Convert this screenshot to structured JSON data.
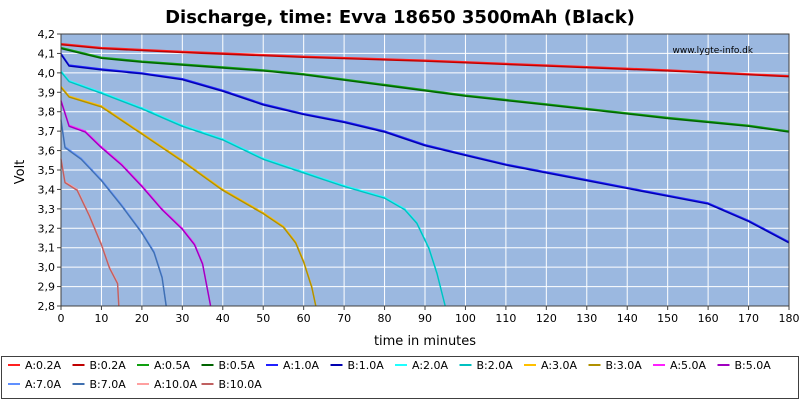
{
  "chart_data": {
    "type": "line",
    "title": "Discharge, time: Evva 18650 3500mAh (Black)",
    "xlabel": "time in minutes",
    "ylabel": "Volt",
    "xlim": [
      0,
      180
    ],
    "ylim": [
      2.8,
      4.2
    ],
    "x_ticks": [
      "0",
      "10",
      "20",
      "30",
      "40",
      "50",
      "60",
      "70",
      "80",
      "90",
      "100",
      "110",
      "120",
      "130",
      "140",
      "150",
      "160",
      "170",
      "180"
    ],
    "y_ticks": [
      "2,8",
      "2,9",
      "3,0",
      "3,1",
      "3,2",
      "3,3",
      "3,4",
      "3,5",
      "3,6",
      "3,7",
      "3,8",
      "3,9",
      "4,0",
      "4,1",
      "4,2"
    ],
    "grid": true,
    "watermark": "www.lygte-info.dk",
    "legend_position": "bottom",
    "background": "#9bb8e0",
    "series": [
      {
        "name": "A:0.2A",
        "color": "#ff2020",
        "points": [
          [
            0,
            4.15
          ],
          [
            10,
            4.13
          ],
          [
            30,
            4.11
          ],
          [
            60,
            4.085
          ],
          [
            90,
            4.065
          ],
          [
            120,
            4.04
          ],
          [
            150,
            4.015
          ],
          [
            180,
            3.985
          ]
        ]
      },
      {
        "name": "B:0.2A",
        "color": "#c00000",
        "points": [
          [
            0,
            4.145
          ],
          [
            10,
            4.125
          ],
          [
            30,
            4.105
          ],
          [
            60,
            4.08
          ],
          [
            90,
            4.06
          ],
          [
            120,
            4.035
          ],
          [
            150,
            4.01
          ],
          [
            180,
            3.98
          ]
        ]
      },
      {
        "name": "A:0.5A",
        "color": "#10a010",
        "points": [
          [
            0,
            4.13
          ],
          [
            10,
            4.08
          ],
          [
            20,
            4.06
          ],
          [
            40,
            4.03
          ],
          [
            50,
            4.015
          ],
          [
            60,
            3.995
          ],
          [
            80,
            3.94
          ],
          [
            100,
            3.885
          ],
          [
            120,
            3.84
          ],
          [
            150,
            3.77
          ],
          [
            170,
            3.73
          ],
          [
            180,
            3.7
          ]
        ]
      },
      {
        "name": "B:0.5A",
        "color": "#006400",
        "points": [
          [
            0,
            4.125
          ],
          [
            10,
            4.075
          ],
          [
            20,
            4.055
          ],
          [
            40,
            4.025
          ],
          [
            50,
            4.01
          ],
          [
            60,
            3.99
          ],
          [
            80,
            3.935
          ],
          [
            100,
            3.88
          ],
          [
            120,
            3.835
          ],
          [
            150,
            3.765
          ],
          [
            170,
            3.725
          ],
          [
            180,
            3.695
          ]
        ]
      },
      {
        "name": "A:1.0A",
        "color": "#2020ff",
        "points": [
          [
            0,
            4.1
          ],
          [
            2,
            4.04
          ],
          [
            10,
            4.02
          ],
          [
            20,
            4.0
          ],
          [
            30,
            3.97
          ],
          [
            40,
            3.91
          ],
          [
            50,
            3.84
          ],
          [
            60,
            3.79
          ],
          [
            70,
            3.75
          ],
          [
            80,
            3.7
          ],
          [
            90,
            3.63
          ],
          [
            100,
            3.58
          ],
          [
            110,
            3.53
          ],
          [
            120,
            3.49
          ],
          [
            130,
            3.45
          ],
          [
            140,
            3.41
          ],
          [
            150,
            3.37
          ],
          [
            160,
            3.33
          ],
          [
            170,
            3.24
          ],
          [
            180,
            3.13
          ]
        ]
      },
      {
        "name": "B:1.0A",
        "color": "#0000b0",
        "points": [
          [
            0,
            4.095
          ],
          [
            2,
            4.035
          ],
          [
            10,
            4.015
          ],
          [
            20,
            3.995
          ],
          [
            30,
            3.965
          ],
          [
            40,
            3.905
          ],
          [
            50,
            3.835
          ],
          [
            60,
            3.785
          ],
          [
            70,
            3.745
          ],
          [
            80,
            3.695
          ],
          [
            90,
            3.625
          ],
          [
            100,
            3.575
          ],
          [
            110,
            3.525
          ],
          [
            120,
            3.485
          ],
          [
            130,
            3.445
          ],
          [
            140,
            3.405
          ],
          [
            150,
            3.365
          ],
          [
            160,
            3.325
          ],
          [
            170,
            3.235
          ],
          [
            180,
            3.125
          ]
        ]
      },
      {
        "name": "A:2.0A",
        "color": "#20ffff",
        "points": [
          [
            0,
            4.01
          ],
          [
            2,
            3.96
          ],
          [
            10,
            3.9
          ],
          [
            20,
            3.82
          ],
          [
            30,
            3.73
          ],
          [
            40,
            3.66
          ],
          [
            50,
            3.56
          ],
          [
            60,
            3.49
          ],
          [
            70,
            3.42
          ],
          [
            80,
            3.36
          ],
          [
            85,
            3.3
          ],
          [
            88,
            3.23
          ],
          [
            91,
            3.1
          ],
          [
            93,
            2.97
          ],
          [
            95,
            2.8
          ]
        ]
      },
      {
        "name": "B:2.0A",
        "color": "#00c0c0",
        "points": [
          [
            0,
            4.005
          ],
          [
            2,
            3.955
          ],
          [
            10,
            3.895
          ],
          [
            20,
            3.815
          ],
          [
            30,
            3.725
          ],
          [
            40,
            3.655
          ],
          [
            50,
            3.555
          ],
          [
            60,
            3.485
          ],
          [
            70,
            3.415
          ],
          [
            80,
            3.355
          ],
          [
            85,
            3.295
          ],
          [
            88,
            3.225
          ],
          [
            91,
            3.095
          ],
          [
            93,
            2.965
          ],
          [
            95,
            2.8
          ]
        ]
      },
      {
        "name": "A:3.0A",
        "color": "#ffc000",
        "points": [
          [
            0,
            3.93
          ],
          [
            2,
            3.88
          ],
          [
            10,
            3.83
          ],
          [
            20,
            3.69
          ],
          [
            30,
            3.55
          ],
          [
            40,
            3.4
          ],
          [
            50,
            3.28
          ],
          [
            55,
            3.21
          ],
          [
            58,
            3.13
          ],
          [
            60,
            3.03
          ],
          [
            62,
            2.9
          ],
          [
            63,
            2.8
          ]
        ]
      },
      {
        "name": "B:3.0A",
        "color": "#b09000",
        "points": [
          [
            0,
            3.925
          ],
          [
            2,
            3.875
          ],
          [
            10,
            3.825
          ],
          [
            20,
            3.685
          ],
          [
            30,
            3.545
          ],
          [
            40,
            3.395
          ],
          [
            50,
            3.275
          ],
          [
            55,
            3.205
          ],
          [
            58,
            3.125
          ],
          [
            60,
            3.025
          ],
          [
            62,
            2.895
          ],
          [
            63,
            2.8
          ]
        ]
      },
      {
        "name": "A:5.0A",
        "color": "#ff20ff",
        "points": [
          [
            0,
            3.86
          ],
          [
            2,
            3.73
          ],
          [
            6,
            3.7
          ],
          [
            10,
            3.62
          ],
          [
            15,
            3.53
          ],
          [
            20,
            3.42
          ],
          [
            25,
            3.3
          ],
          [
            30,
            3.2
          ],
          [
            33,
            3.12
          ],
          [
            35,
            3.02
          ],
          [
            37,
            2.8
          ]
        ]
      },
      {
        "name": "B:5.0A",
        "color": "#a000c0",
        "points": [
          [
            0,
            3.855
          ],
          [
            2,
            3.725
          ],
          [
            6,
            3.695
          ],
          [
            10,
            3.615
          ],
          [
            15,
            3.525
          ],
          [
            20,
            3.415
          ],
          [
            25,
            3.295
          ],
          [
            30,
            3.195
          ],
          [
            33,
            3.115
          ],
          [
            35,
            3.015
          ],
          [
            37,
            2.8
          ]
        ]
      },
      {
        "name": "A:7.0A",
        "color": "#6090ff",
        "points": [
          [
            0,
            3.76
          ],
          [
            1,
            3.62
          ],
          [
            5,
            3.56
          ],
          [
            10,
            3.45
          ],
          [
            15,
            3.32
          ],
          [
            20,
            3.18
          ],
          [
            23,
            3.08
          ],
          [
            25,
            2.95
          ],
          [
            26,
            2.8
          ]
        ]
      },
      {
        "name": "B:7.0A",
        "color": "#4070b0",
        "points": [
          [
            0,
            3.755
          ],
          [
            1,
            3.615
          ],
          [
            5,
            3.555
          ],
          [
            10,
            3.445
          ],
          [
            15,
            3.315
          ],
          [
            20,
            3.175
          ],
          [
            23,
            3.075
          ],
          [
            25,
            2.945
          ],
          [
            26,
            2.8
          ]
        ]
      },
      {
        "name": "A:10.0A",
        "color": "#ffa0a0",
        "points": [
          [
            0,
            3.56
          ],
          [
            1,
            3.44
          ],
          [
            4,
            3.4
          ],
          [
            7,
            3.27
          ],
          [
            10,
            3.12
          ],
          [
            12,
            3.0
          ],
          [
            14,
            2.92
          ],
          [
            14.3,
            2.8
          ]
        ]
      },
      {
        "name": "B:10.0A",
        "color": "#c06060",
        "points": [
          [
            0,
            3.555
          ],
          [
            1,
            3.435
          ],
          [
            4,
            3.395
          ],
          [
            7,
            3.265
          ],
          [
            10,
            3.115
          ],
          [
            12,
            2.995
          ],
          [
            14,
            2.915
          ],
          [
            14.3,
            2.8
          ]
        ]
      }
    ]
  }
}
